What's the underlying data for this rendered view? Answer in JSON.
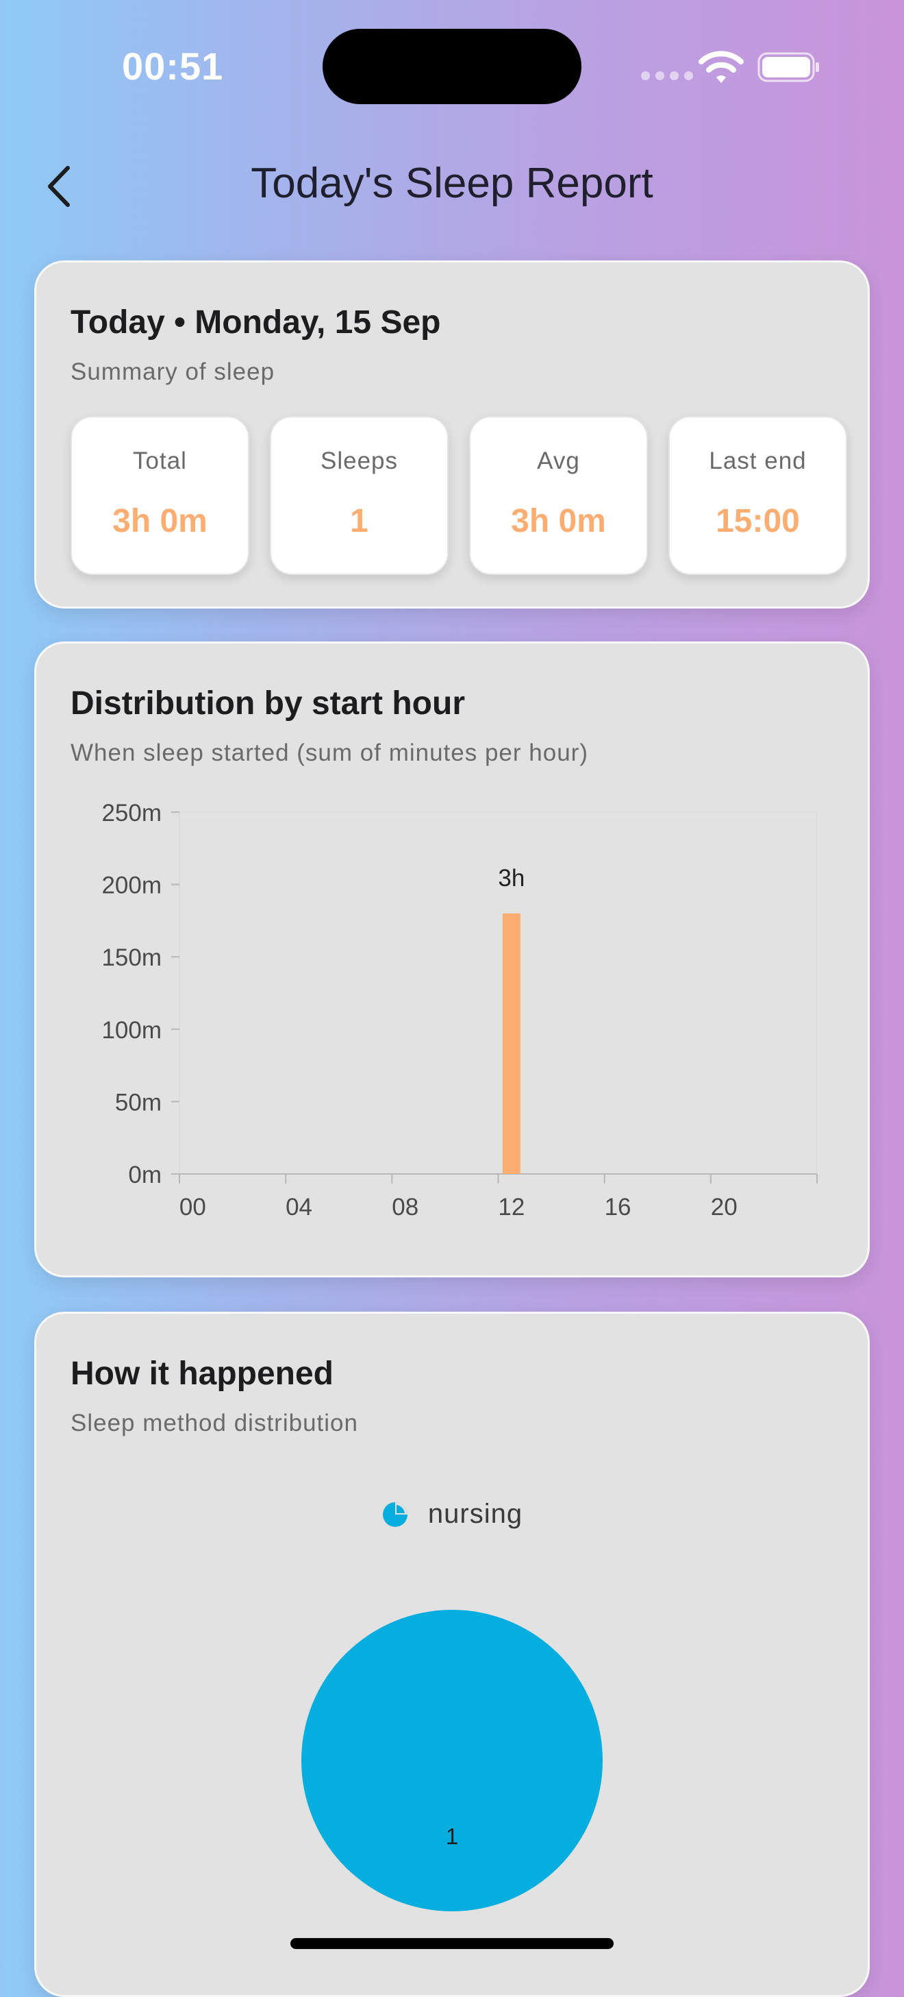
{
  "status_bar": {
    "time": "00:51"
  },
  "nav": {
    "title": "Today's Sleep Report"
  },
  "summary": {
    "title": "Today • Monday, 15 Sep",
    "subtitle": "Summary of sleep",
    "stats": [
      {
        "label": "Total",
        "value": "3h 0m"
      },
      {
        "label": "Sleeps",
        "value": "1"
      },
      {
        "label": "Avg",
        "value": "3h 0m"
      },
      {
        "label": "Last end",
        "value": "15:00"
      }
    ]
  },
  "distribution": {
    "title": "Distribution by start hour",
    "subtitle": "When sleep started (sum of minutes per hour)"
  },
  "method": {
    "title": "How it happened",
    "subtitle": "Sleep method distribution"
  },
  "colors": {
    "accent_orange": "#fcae72",
    "pie_blue": "#05aedf"
  },
  "chart_data": [
    {
      "type": "bar",
      "x_unit": "hour",
      "xlim": [
        0,
        24
      ],
      "x_ticks": [
        "00",
        "04",
        "08",
        "12",
        "16",
        "20"
      ],
      "y_ticks": [
        "0m",
        "50m",
        "100m",
        "150m",
        "200m",
        "250m"
      ],
      "ylim": [
        0,
        250
      ],
      "bars": [
        {
          "x": 12,
          "value": 180,
          "label": "3h"
        }
      ],
      "color": "#fcae72",
      "grid": false
    },
    {
      "type": "pie",
      "slices": [
        {
          "name": "nursing",
          "value": 1,
          "label": "1",
          "color": "#05aedf"
        }
      ],
      "legend": "top-center"
    }
  ]
}
